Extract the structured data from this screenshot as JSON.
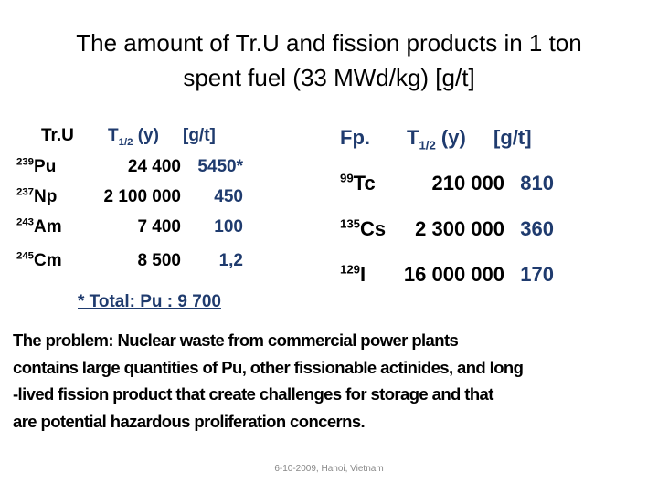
{
  "title": [
    "The amount of Tr.U and fission products in 1 ton",
    "spent fuel (33 MWd/kg)  [g/t]"
  ],
  "left_table": {
    "header": {
      "element": "Tr.U",
      "halflife": {
        "symbol": "T",
        "sub": "1/2",
        "unit": "(y)"
      },
      "amount": "[g/t]"
    },
    "rows": [
      {
        "mass": "239",
        "element": "Pu",
        "halflife": "24 400",
        "amount": "5450*"
      },
      {
        "mass": "237",
        "element": "Np",
        "halflife": "2 100 000",
        "amount": "450"
      },
      {
        "mass": "243",
        "element": "Am",
        "halflife": "7 400",
        "amount": "100"
      },
      {
        "mass": "245",
        "element": "Cm",
        "halflife": "8 500",
        "amount": "1,2"
      }
    ]
  },
  "note": "* Total: Pu : 9 700",
  "right_table": {
    "header": {
      "element": "Fp.",
      "halflife": {
        "symbol": "T",
        "sub": "1/2",
        "unit": "(y)"
      },
      "amount": "[g/t]"
    },
    "rows": [
      {
        "mass": "99",
        "element": "Tc",
        "halflife": "210 000",
        "amount": "810"
      },
      {
        "mass": "135",
        "element": "Cs",
        "halflife": "2 300 000",
        "amount": "360"
      },
      {
        "mass": "129",
        "element": "I",
        "halflife": "16 000 000",
        "amount": "170"
      }
    ]
  },
  "paragraph": [
    "The problem: Nuclear waste from commercial power plants",
    "contains large quantities of Pu, other fissionable actinides, and long",
    "-lived fission product that create challenges for storage and that",
    "are potential hazardous proliferation concerns."
  ],
  "footer": "6-10-2009, Hanoi, Vietnam"
}
